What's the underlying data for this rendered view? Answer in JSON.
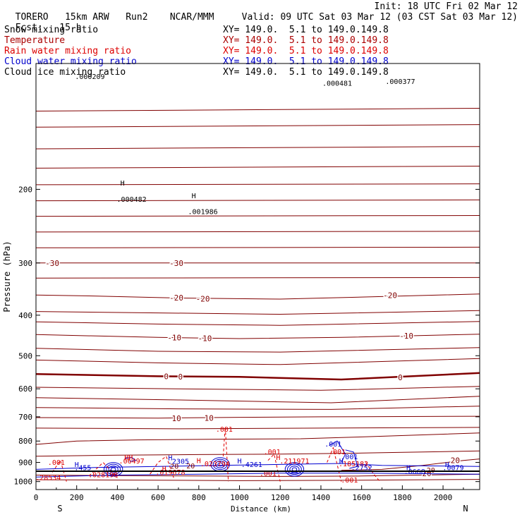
{
  "header": {
    "model": "TORERO",
    "grid": "15km ARW",
    "run": "Run2",
    "org": "NCAR/MMM",
    "init": "Init: 18 UTC Fri 02 Mar 12",
    "fcst_label": "Fcst:",
    "fcst_value": "15 h",
    "valid": "Valid: 09 UTC Sat 03 Mar 12 (03 CST Sat 03 Mar 12)"
  },
  "fields": [
    {
      "name": "Snow mixing ratio",
      "color": "#000000",
      "xy": "XY= 149.0.  5.1 to 149.0.149.8"
    },
    {
      "name": "Temperature",
      "color": "#aa0000",
      "xy": "XY= 149.0.  5.1 to 149.0.149.8"
    },
    {
      "name": "Rain water mixing ratio",
      "color": "#dd0000",
      "xy": "XY= 149.0.  5.1 to 149.0.149.8"
    },
    {
      "name": "Cloud water mixing ratio",
      "color": "#0000cc",
      "xy": "XY= 149.0.  5.1 to 149.0.149.8"
    },
    {
      "name": "Cloud ice mixing ratio",
      "color": "#000000",
      "xy": "XY= 149.0.  5.1 to 149.0.149.8"
    }
  ],
  "chart_data": {
    "type": "contour",
    "xlabel": "Distance (km)",
    "ylabel": "Pressure (hPa)",
    "x_ticks": [
      0,
      200,
      400,
      600,
      800,
      1000,
      1200,
      1400,
      1600,
      1800,
      2000
    ],
    "y_ticks": [
      200,
      300,
      400,
      500,
      600,
      700,
      800,
      900,
      1000
    ],
    "xlim": [
      0,
      2180
    ],
    "ylim": [
      1045,
      100
    ],
    "y_scale": "log",
    "orientation_left": "S",
    "orientation_right": "N",
    "colors": {
      "temperature": "#800000",
      "rain": "#e00000",
      "cloud_water": "#0000d0",
      "axes": "#000000"
    },
    "temperature_contours": [
      {
        "label": "-30",
        "pts": [
          [
            0,
            300
          ],
          [
            2180,
            300
          ]
        ],
        "label_at": [
          [
            80,
            300
          ],
          [
            690,
            300
          ]
        ]
      },
      {
        "label": "-20",
        "pts": [
          [
            0,
            358
          ],
          [
            300,
            360
          ],
          [
            700,
            364
          ],
          [
            1200,
            366
          ],
          [
            1600,
            362
          ],
          [
            2180,
            356
          ]
        ],
        "label_at": [
          [
            690,
            363
          ],
          [
            820,
            365
          ],
          [
            1740,
            358
          ]
        ]
      },
      {
        "label": "-10",
        "pts": [
          [
            0,
            445
          ],
          [
            600,
            452
          ],
          [
            1000,
            455
          ],
          [
            1500,
            452
          ],
          [
            2180,
            444
          ]
        ],
        "label_at": [
          [
            680,
            452
          ],
          [
            830,
            454
          ],
          [
            1820,
            448
          ]
        ]
      },
      {
        "label": "0",
        "pts": [
          [
            0,
            553
          ],
          [
            600,
            560
          ],
          [
            1000,
            562
          ],
          [
            1500,
            570
          ],
          [
            2180,
            550
          ]
        ],
        "label_at": [
          [
            640,
            560
          ],
          [
            710,
            561
          ],
          [
            1790,
            563
          ]
        ]
      },
      {
        "label": "10",
        "pts": [
          [
            0,
            703
          ],
          [
            600,
            705
          ],
          [
            1000,
            702
          ],
          [
            1400,
            700
          ],
          [
            2180,
            698
          ]
        ],
        "label_at": [
          [
            690,
            706
          ],
          [
            850,
            704
          ]
        ]
      },
      {
        "label": "20",
        "pts": [
          [
            1500,
            940
          ],
          [
            1700,
            935
          ],
          [
            1900,
            915
          ],
          [
            2100,
            890
          ],
          [
            2180,
            883
          ]
        ],
        "label_at": [
          [
            2060,
            890
          ],
          [
            1920,
            955
          ]
        ]
      }
    ],
    "background_isotherms": [
      [
        [
          0,
          130
        ],
        [
          2180,
          128
        ]
      ],
      [
        [
          0,
          142
        ],
        [
          2180,
          140
        ]
      ],
      [
        [
          0,
          160
        ],
        [
          2180,
          158
        ]
      ],
      [
        [
          0,
          178
        ],
        [
          2180,
          176
        ]
      ],
      [
        [
          0,
          195
        ],
        [
          2180,
          194
        ]
      ],
      [
        [
          0,
          213
        ],
        [
          2180,
          212
        ]
      ],
      [
        [
          0,
          232
        ],
        [
          2180,
          231
        ]
      ],
      [
        [
          0,
          253
        ],
        [
          2180,
          252
        ]
      ],
      [
        [
          0,
          276
        ],
        [
          2180,
          275
        ]
      ],
      [
        [
          0,
          326
        ],
        [
          2180,
          325
        ]
      ],
      [
        [
          0,
          392
        ],
        [
          600,
          395
        ],
        [
          1200,
          398
        ],
        [
          2180,
          390
        ]
      ],
      [
        [
          0,
          415
        ],
        [
          600,
          420
        ],
        [
          1200,
          423
        ],
        [
          2180,
          414
        ]
      ],
      [
        [
          0,
          480
        ],
        [
          600,
          488
        ],
        [
          1200,
          490
        ],
        [
          2180,
          478
        ]
      ],
      [
        [
          0,
          512
        ],
        [
          600,
          520
        ],
        [
          1200,
          525
        ],
        [
          2180,
          508
        ]
      ],
      [
        [
          0,
          595
        ],
        [
          700,
          600
        ],
        [
          1400,
          605
        ],
        [
          2180,
          592
        ]
      ],
      [
        [
          0,
          630
        ],
        [
          700,
          638
        ],
        [
          1450,
          648
        ],
        [
          2180,
          625
        ]
      ],
      [
        [
          0,
          665
        ],
        [
          700,
          670
        ],
        [
          1450,
          672
        ],
        [
          2180,
          660
        ]
      ],
      [
        [
          0,
          745
        ],
        [
          700,
          748
        ],
        [
          1400,
          745
        ],
        [
          2180,
          742
        ]
      ],
      [
        [
          0,
          815
        ],
        [
          200,
          800
        ],
        [
          500,
          795
        ],
        [
          900,
          792
        ],
        [
          1300,
          790
        ],
        [
          1600,
          782
        ],
        [
          2180,
          765
        ]
      ],
      [
        [
          0,
          870
        ],
        [
          400,
          865
        ],
        [
          800,
          862
        ],
        [
          1200,
          860
        ],
        [
          1600,
          855
        ],
        [
          2180,
          845
        ]
      ],
      [
        [
          0,
          965
        ],
        [
          400,
          968
        ],
        [
          800,
          970
        ],
        [
          1200,
          972
        ],
        [
          1600,
          970
        ],
        [
          2180,
          960
        ]
      ],
      [
        [
          0,
          990
        ],
        [
          500,
          992
        ],
        [
          1000,
          995
        ],
        [
          1500,
          993
        ],
        [
          2180,
          988
        ]
      ]
    ],
    "rain_contours": [
      {
        "pts": [
          [
            80,
            950
          ],
          [
            120,
            890
          ],
          [
            150,
            1000
          ]
        ]
      },
      {
        "pts": [
          [
            260,
            970
          ],
          [
            330,
            900
          ],
          [
            400,
            980
          ]
        ]
      },
      {
        "pts": [
          [
            560,
            960
          ],
          [
            600,
            900
          ],
          [
            640,
            870
          ],
          [
            680,
            990
          ]
        ]
      },
      {
        "pts": [
          [
            920,
            870
          ],
          [
            930,
            740
          ],
          [
            945,
            1000
          ]
        ]
      },
      {
        "pts": [
          [
            1140,
            890
          ],
          [
            1170,
            860
          ],
          [
            1200,
            1000
          ]
        ]
      },
      {
        "pts": [
          [
            1430,
            900
          ],
          [
            1460,
            830
          ],
          [
            1500,
            1000
          ]
        ]
      },
      {
        "pts": [
          [
            1620,
            900
          ],
          [
            1660,
            960
          ],
          [
            1690,
            1000
          ]
        ]
      }
    ],
    "cloud_contours": [
      {
        "pts": [
          [
            0,
            935
          ],
          [
            300,
            925
          ],
          [
            600,
            920
          ],
          [
            900,
            915
          ],
          [
            1200,
            910
          ],
          [
            1500,
            905
          ],
          [
            1700,
            915
          ],
          [
            2180,
            920
          ]
        ]
      },
      {
        "pts": [
          [
            0,
            975
          ],
          [
            400,
            965
          ],
          [
            800,
            960
          ],
          [
            1200,
            955
          ],
          [
            1600,
            955
          ],
          [
            2180,
            960
          ]
        ]
      },
      {
        "pts": [
          [
            440,
            880
          ],
          [
            470,
            875
          ],
          [
            490,
            890
          ],
          [
            460,
            895
          ]
        ]
      },
      {
        "pts": [
          [
            1440,
            820
          ],
          [
            1480,
            800
          ],
          [
            1520,
            860
          ],
          [
            1500,
            900
          ]
        ]
      },
      {
        "pts": [
          [
            1520,
            840
          ],
          [
            1560,
            850
          ],
          [
            1580,
            920
          ],
          [
            1540,
            930
          ]
        ]
      }
    ],
    "cloud_rings": [
      [
        380,
        935
      ],
      [
        1270,
        935
      ],
      [
        905,
        910
      ]
    ],
    "annotations": [
      {
        "text": "H",
        "x": 425,
        "y": 196,
        "color": "#000000"
      },
      {
        "text": ".000482",
        "x": 470,
        "y": 214,
        "color": "#000000"
      },
      {
        "text": "H",
        "x": 775,
        "y": 210,
        "color": "#000000"
      },
      {
        "text": ".001986",
        "x": 820,
        "y": 229,
        "color": "#000000"
      },
      {
        "text": ".000209",
        "x": 265,
        "y": 109,
        "color": "#000000"
      },
      {
        "text": ".000481",
        "x": 1480,
        "y": 113,
        "color": "#000000"
      },
      {
        "text": ".000377",
        "x": 1790,
        "y": 112,
        "color": "#000000"
      },
      {
        "text": ".001",
        "x": 925,
        "y": 760,
        "color": "#dd0000"
      },
      {
        "text": ".001",
        "x": 1160,
        "y": 860,
        "color": "#dd0000"
      },
      {
        "text": ".001",
        "x": 1480,
        "y": 860,
        "color": "#dd0000"
      },
      {
        "text": ".001",
        "x": 1460,
        "y": 825,
        "color": "#0000cc"
      },
      {
        "text": ".001",
        "x": 1540,
        "y": 885,
        "color": "#0000cc"
      },
      {
        "text": ".001",
        "x": 100,
        "y": 913,
        "color": "#dd0000"
      },
      {
        "text": ".001",
        "x": 1140,
        "y": 969,
        "color": "#dd0000"
      },
      {
        "text": ".001",
        "x": 1540,
        "y": 1005,
        "color": "#dd0000"
      },
      {
        "text": "HH",
        "x": 455,
        "y": 888,
        "color": "#dd0000"
      },
      {
        "text": ".06497",
        "x": 470,
        "y": 905,
        "color": "#dd0000"
      },
      {
        "text": "H",
        "x": 660,
        "y": 890,
        "color": "#0000cc"
      },
      {
        "text": ".2305",
        "x": 700,
        "y": 906,
        "color": "#0000cc"
      },
      {
        "text": "H",
        "x": 800,
        "y": 904,
        "color": "#dd0000"
      },
      {
        "text": ".023794",
        "x": 880,
        "y": 920,
        "color": "#dd0000"
      },
      {
        "text": "H",
        "x": 1000,
        "y": 905,
        "color": "#0000cc"
      },
      {
        "text": ".4261",
        "x": 1060,
        "y": 922,
        "color": "#0000cc"
      },
      {
        "text": "H",
        "x": 1190,
        "y": 888,
        "color": "#dd0000"
      },
      {
        "text": ".211971",
        "x": 1270,
        "y": 905,
        "color": "#dd0000"
      },
      {
        "text": "H",
        "x": 1500,
        "y": 905,
        "color": "#0000cc"
      },
      {
        "text": ".185182",
        "x": 1560,
        "y": 920,
        "color": "#dd0000"
      },
      {
        "text": ".2752",
        "x": 1600,
        "y": 940,
        "color": "#0000cc"
      },
      {
        "text": "H",
        "x": 200,
        "y": 922,
        "color": "#0000cc"
      },
      {
        "text": ".455",
        "x": 230,
        "y": 940,
        "color": "#0000cc"
      },
      {
        "text": "H",
        "x": 630,
        "y": 945,
        "color": "#dd0000"
      },
      {
        "text": ".019678",
        "x": 660,
        "y": 963,
        "color": "#dd0000"
      },
      {
        "text": ".028198",
        "x": 330,
        "y": 977,
        "color": "#dd0000"
      },
      {
        "text": ".28534",
        "x": 60,
        "y": 992,
        "color": "#dd0000"
      },
      {
        "text": "H",
        "x": 1830,
        "y": 940,
        "color": "#0000cc"
      },
      {
        "text": ".0668",
        "x": 1860,
        "y": 959,
        "color": "#0000cc"
      },
      {
        "text": "H",
        "x": 2020,
        "y": 922,
        "color": "#0000cc"
      },
      {
        "text": ".0079",
        "x": 2050,
        "y": 940,
        "color": "#0000cc"
      },
      {
        "text": "20",
        "x": 680,
        "y": 932,
        "color": "#800000"
      },
      {
        "text": "20",
        "x": 760,
        "y": 930,
        "color": "#800000"
      },
      {
        "text": "20",
        "x": 1940,
        "y": 952,
        "color": "#800000"
      }
    ]
  }
}
